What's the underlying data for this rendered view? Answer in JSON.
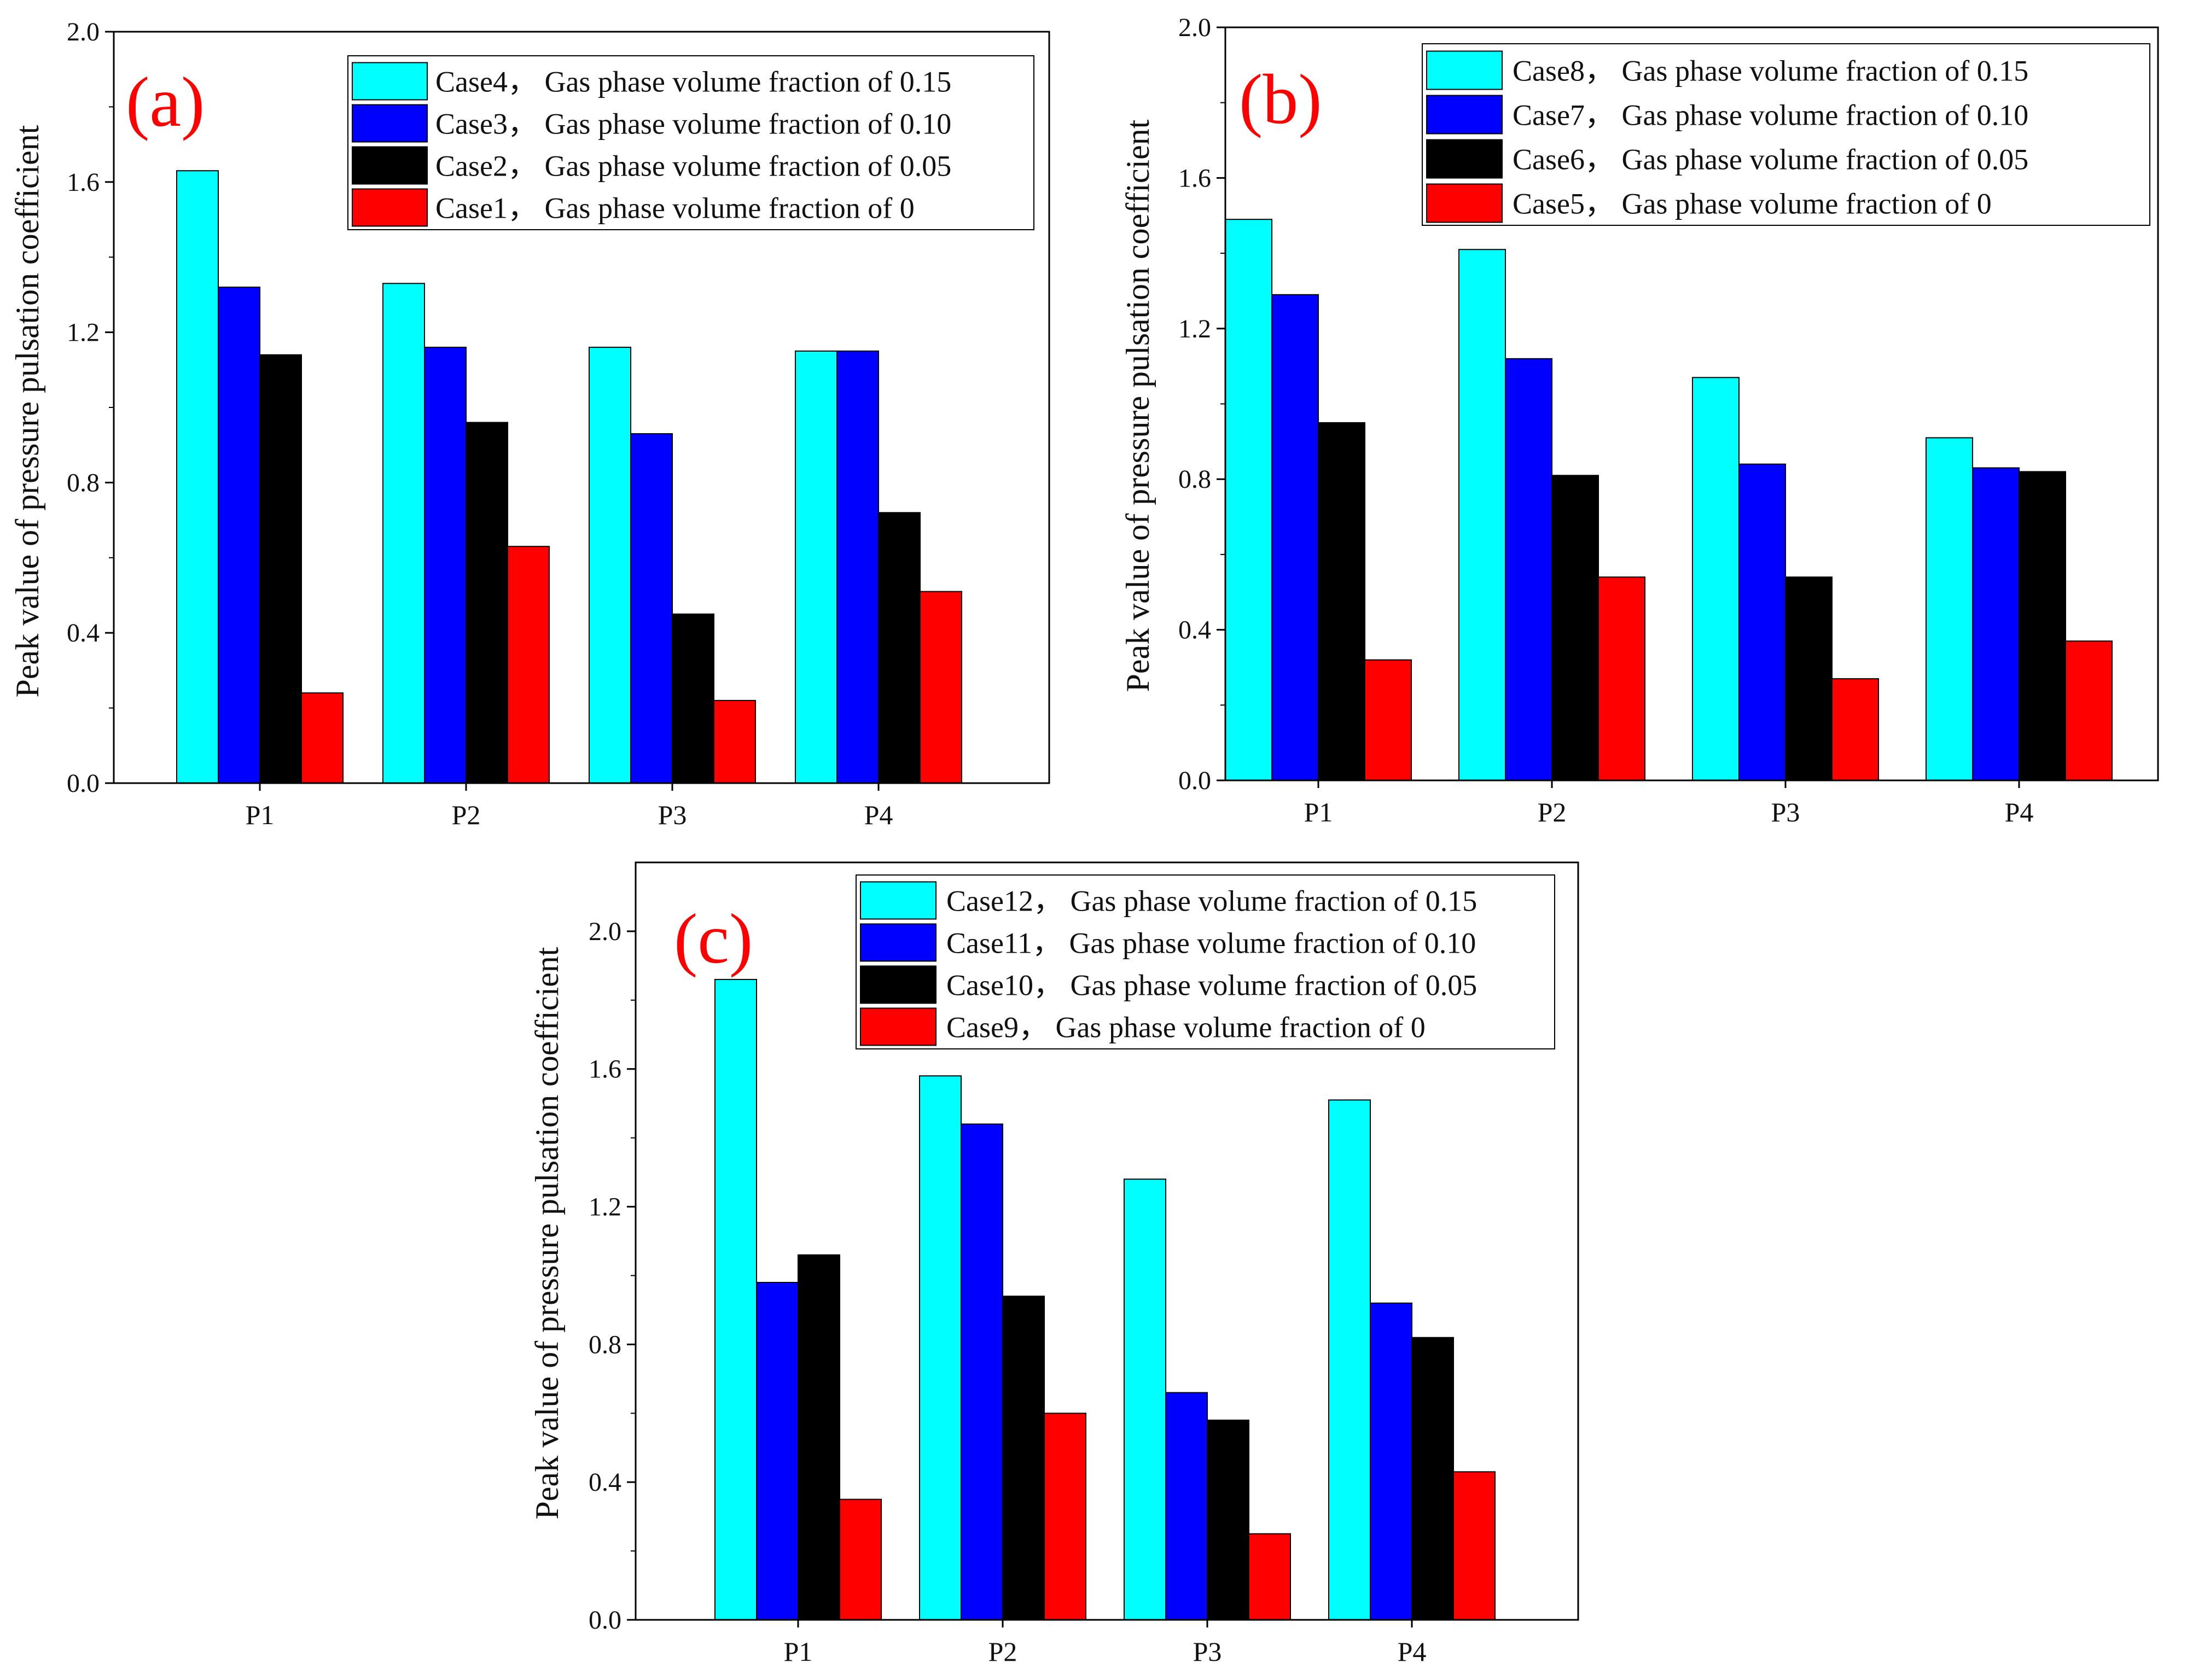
{
  "chart_data": [
    {
      "type": "bar",
      "panel_label": "(a)",
      "ylabel": "Peak value of pressure pulsation coefficient",
      "xlabel": "",
      "ylim": [
        0,
        2.0
      ],
      "yticks": [
        "0.0",
        "0.4",
        "0.8",
        "1.2",
        "1.6",
        "2.0"
      ],
      "categories": [
        "P1",
        "P2",
        "P3",
        "P4"
      ],
      "legend_position": "top-right",
      "series": [
        {
          "name": "Case4， Gas phase volume fraction of 0.15",
          "color": "#00ffff",
          "values": [
            1.63,
            1.33,
            1.16,
            1.15
          ]
        },
        {
          "name": "Case3， Gas phase volume fraction of 0.10",
          "color": "#0000ff",
          "values": [
            1.32,
            1.16,
            0.93,
            1.15
          ]
        },
        {
          "name": "Case2， Gas phase volume fraction of 0.05",
          "color": "#000000",
          "values": [
            1.14,
            0.96,
            0.45,
            0.72
          ]
        },
        {
          "name": "Case1， Gas phase volume fraction of 0",
          "color": "#ff0000",
          "values": [
            0.24,
            0.63,
            0.22,
            0.51
          ]
        }
      ]
    },
    {
      "type": "bar",
      "panel_label": "(b)",
      "ylabel": "Peak value of pressure pulsation coefficient",
      "xlabel": "",
      "ylim": [
        0,
        2.0
      ],
      "yticks": [
        "0.0",
        "0.4",
        "0.8",
        "1.2",
        "1.6",
        "2.0"
      ],
      "categories": [
        "P1",
        "P2",
        "P3",
        "P4"
      ],
      "legend_position": "top-right",
      "series": [
        {
          "name": "Case8， Gas phase volume fraction of 0.15",
          "color": "#00ffff",
          "values": [
            1.49,
            1.41,
            1.07,
            0.91
          ]
        },
        {
          "name": "Case7， Gas phase volume fraction of 0.10",
          "color": "#0000ff",
          "values": [
            1.29,
            1.12,
            0.84,
            0.83
          ]
        },
        {
          "name": "Case6， Gas phase volume fraction of 0.05",
          "color": "#000000",
          "values": [
            0.95,
            0.81,
            0.54,
            0.82
          ]
        },
        {
          "name": "Case5， Gas phase volume fraction of 0",
          "color": "#ff0000",
          "values": [
            0.32,
            0.54,
            0.27,
            0.37
          ]
        }
      ]
    },
    {
      "type": "bar",
      "panel_label": "(c)",
      "ylabel": "Peak value of pressure pulsation coefficient",
      "xlabel": "",
      "ylim": [
        0,
        2.2
      ],
      "yticks": [
        "0.0",
        "0.4",
        "0.8",
        "1.2",
        "1.6",
        "2.0"
      ],
      "categories": [
        "P1",
        "P2",
        "P3",
        "P4"
      ],
      "legend_position": "top-right",
      "series": [
        {
          "name": "Case12， Gas phase volume fraction of 0.15",
          "color": "#00ffff",
          "values": [
            1.86,
            1.58,
            1.28,
            1.51
          ]
        },
        {
          "name": "Case11， Gas phase volume fraction of 0.10",
          "color": "#0000ff",
          "values": [
            0.98,
            1.44,
            0.66,
            0.92
          ]
        },
        {
          "name": "Case10， Gas phase volume fraction of 0.05",
          "color": "#000000",
          "values": [
            1.06,
            0.94,
            0.58,
            0.82
          ]
        },
        {
          "name": "Case9， Gas phase volume fraction of 0",
          "color": "#ff0000",
          "values": [
            0.35,
            0.6,
            0.25,
            0.43
          ]
        }
      ]
    }
  ]
}
